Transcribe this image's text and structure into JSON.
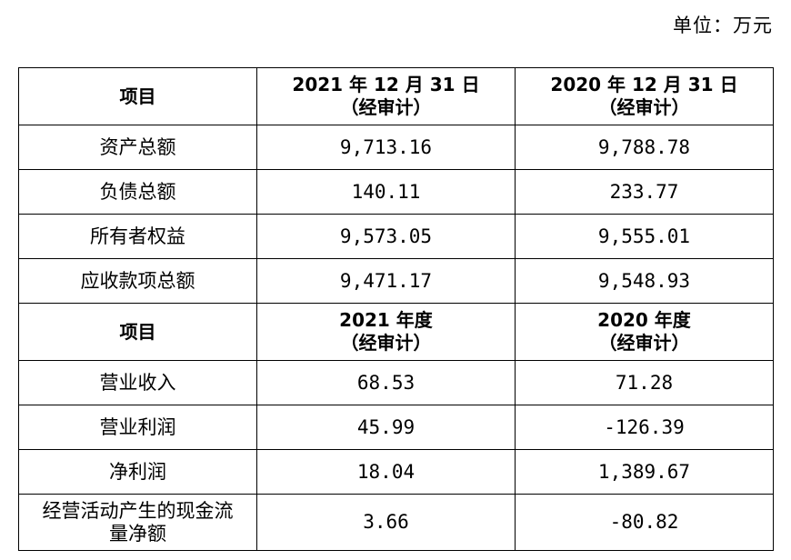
{
  "unit_label": "单位：万元",
  "balance_header": {
    "item": "项目",
    "col_2021_line1": "2021 年 12 月 31 日",
    "col_2021_line2": "（经审计）",
    "col_2020_line1": "2020 年 12 月 31 日",
    "col_2020_line2": "（经审计）"
  },
  "balance_rows": [
    {
      "label": "资产总额",
      "v2021": "9,713.16",
      "v2020": "9,788.78"
    },
    {
      "label": "负债总额",
      "v2021": "140.11",
      "v2020": "233.77"
    },
    {
      "label": "所有者权益",
      "v2021": "9,573.05",
      "v2020": "9,555.01"
    },
    {
      "label": "应收款项总额",
      "v2021": "9,471.17",
      "v2020": "9,548.93"
    }
  ],
  "income_header": {
    "item": "项目",
    "col_2021_line1": "2021 年度",
    "col_2021_line2": "（经审计）",
    "col_2020_line1": "2020 年度",
    "col_2020_line2": "（经审计）"
  },
  "income_rows": [
    {
      "label": "营业收入",
      "v2021": "68.53",
      "v2020": "71.28"
    },
    {
      "label": "营业利润",
      "v2021": "45.99",
      "v2020": "-126.39"
    },
    {
      "label": "净利润",
      "v2021": "18.04",
      "v2020": "1,389.67"
    }
  ],
  "cashflow_row": {
    "label_line1": "经营活动产生的现金流",
    "label_line2": "量净额",
    "v2021": "3.66",
    "v2020": "-80.82"
  }
}
